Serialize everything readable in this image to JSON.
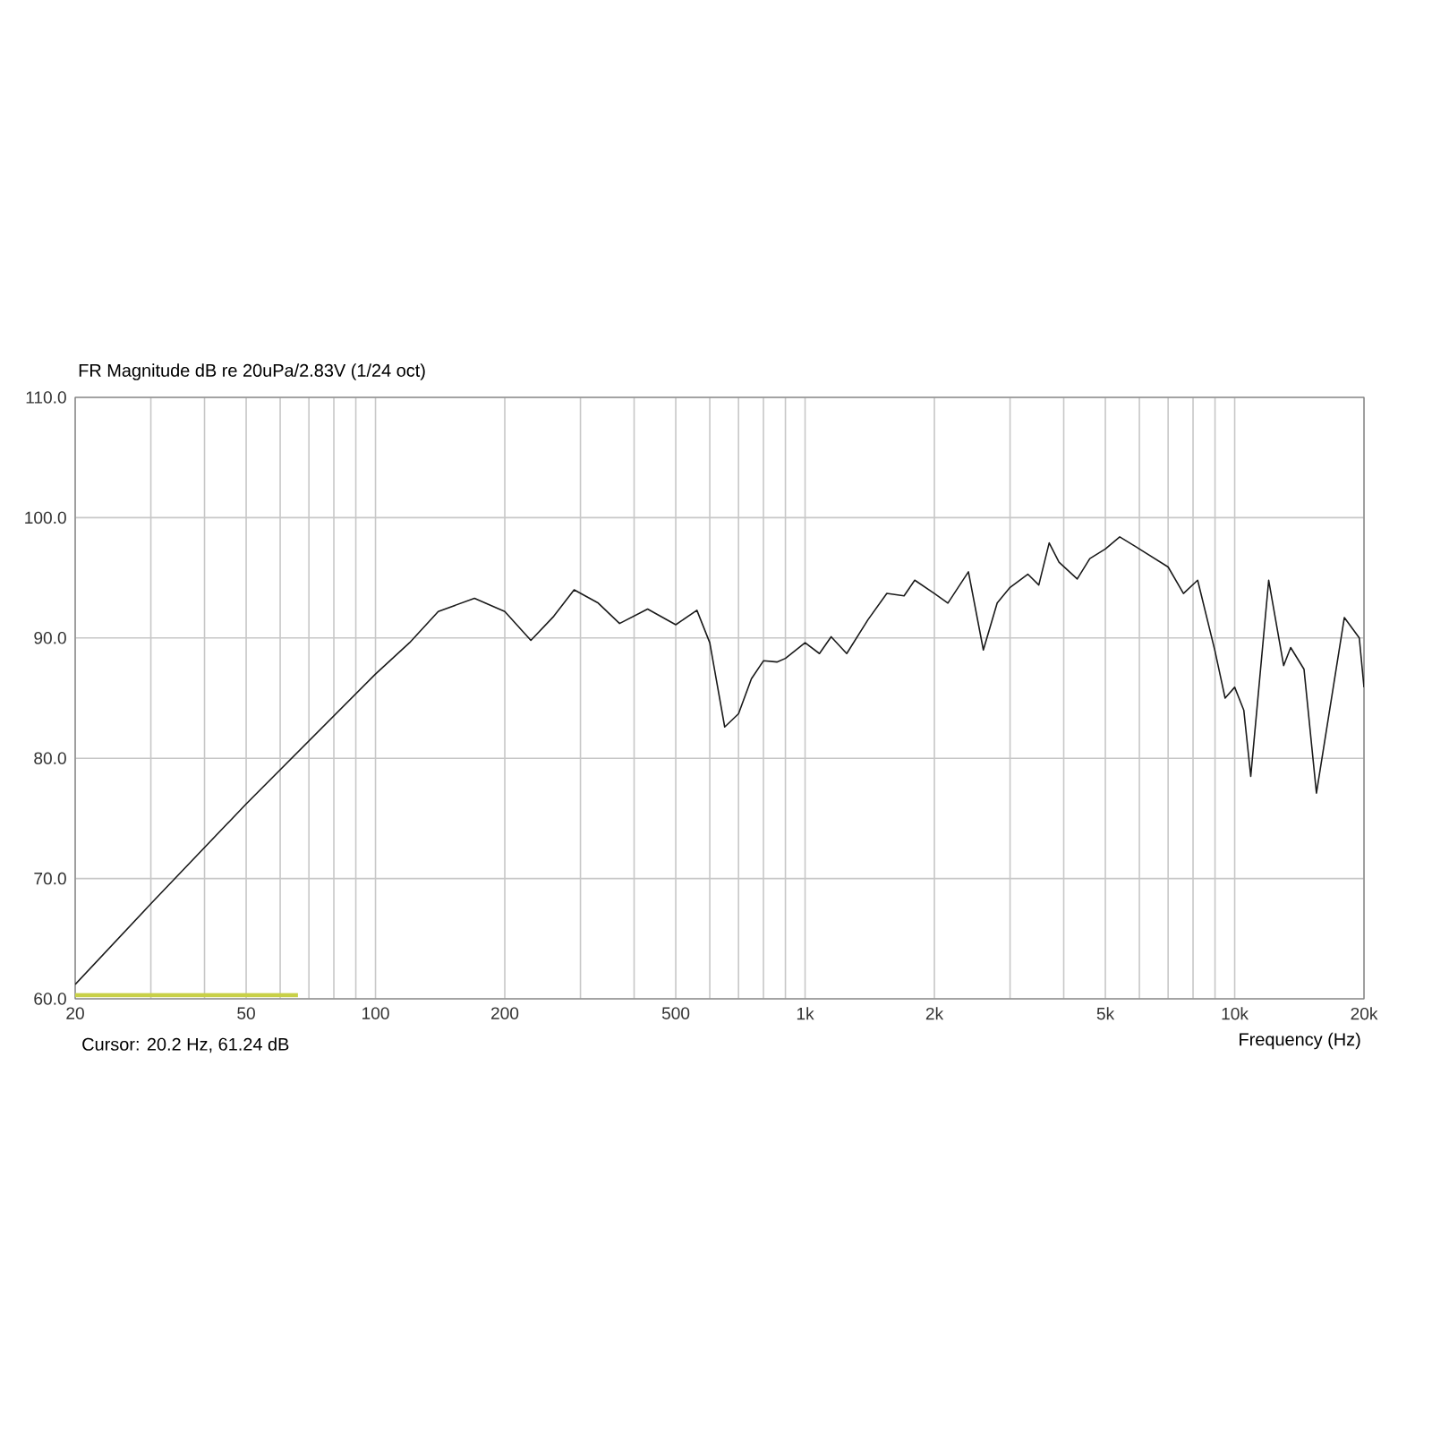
{
  "chart_data": {
    "type": "line",
    "title": "FR Magnitude dB re 20uPa/2.83V (1/24 oct)",
    "xlabel": "Frequency (Hz)",
    "annotations": [
      "Cursor: 20.2 Hz, 61.24 dB"
    ],
    "series": [
      {
        "color": "#1a1a1a",
        "x": [
          20,
          30,
          50,
          100,
          120,
          140,
          170,
          200,
          230,
          260,
          290,
          330,
          370,
          430,
          500,
          560,
          600,
          650,
          700,
          750,
          800,
          860,
          900,
          1000,
          1080,
          1150,
          1250,
          1400,
          1550,
          1700,
          1800,
          2000,
          2150,
          2400,
          2600,
          2800,
          3000,
          3300,
          3500,
          3700,
          3900,
          4300,
          4600,
          5000,
          5400,
          6000,
          7000,
          7600,
          8200,
          9000,
          9500,
          10000,
          10500,
          10900,
          12000,
          13000,
          13500,
          14500,
          15500,
          18000,
          19500,
          20000
        ],
        "values": [
          61.2,
          67.9,
          76.2,
          87.0,
          89.6,
          92.2,
          93.3,
          92.2,
          89.8,
          91.8,
          94.0,
          92.9,
          91.2,
          92.4,
          91.1,
          92.3,
          89.6,
          82.6,
          83.7,
          86.6,
          88.1,
          88.0,
          88.3,
          89.6,
          88.7,
          90.1,
          88.7,
          91.5,
          93.7,
          93.5,
          94.8,
          93.7,
          92.9,
          95.5,
          89.0,
          92.9,
          94.2,
          95.3,
          94.4,
          97.9,
          96.3,
          94.9,
          96.6,
          97.4,
          98.4,
          97.4,
          95.9,
          93.7,
          94.8,
          88.9,
          85.0,
          85.9,
          84.0,
          78.5,
          94.8,
          87.7,
          89.2,
          87.4,
          77.1,
          91.7,
          90.0,
          85.9
        ]
      },
      {
        "color": "#c8d048",
        "x": [
          20,
          66
        ],
        "values": [
          60.3,
          60.3
        ]
      }
    ],
    "log": "x",
    "grid": true,
    "xlim": [
      20,
      20000
    ],
    "ylim": [
      60,
      110
    ],
    "xticks": [
      20,
      {
        "value": 30,
        "label": null
      },
      {
        "value": 40,
        "label": null
      },
      50,
      {
        "value": 60,
        "label": null
      },
      {
        "value": 70,
        "label": null
      },
      {
        "value": 80,
        "label": null
      },
      {
        "value": 90,
        "label": null
      },
      100,
      200,
      {
        "value": 300,
        "label": null
      },
      {
        "value": 400,
        "label": null
      },
      500,
      {
        "value": 600,
        "label": null
      },
      {
        "value": 700,
        "label": null
      },
      {
        "value": 800,
        "label": null
      },
      {
        "value": 900,
        "label": null
      },
      {
        "value": 1000,
        "label": "1k"
      },
      {
        "value": 2000,
        "label": "2k"
      },
      {
        "value": 3000,
        "label": null
      },
      {
        "value": 4000,
        "label": null
      },
      {
        "value": 5000,
        "label": "5k"
      },
      {
        "value": 6000,
        "label": null
      },
      {
        "value": 7000,
        "label": null
      },
      {
        "value": 8000,
        "label": null
      },
      {
        "value": 9000,
        "label": null
      },
      {
        "value": 10000,
        "label": "10k"
      },
      {
        "value": 20000,
        "label": "20k"
      }
    ],
    "yticks": [
      {
        "value": 60,
        "label": "60.0"
      },
      {
        "value": 70,
        "label": "70.0"
      },
      {
        "value": 80,
        "label": "80.0"
      },
      {
        "value": 90,
        "label": "90.0"
      },
      {
        "value": 100,
        "label": "100.0"
      },
      {
        "value": 110,
        "label": "110.0"
      }
    ]
  }
}
